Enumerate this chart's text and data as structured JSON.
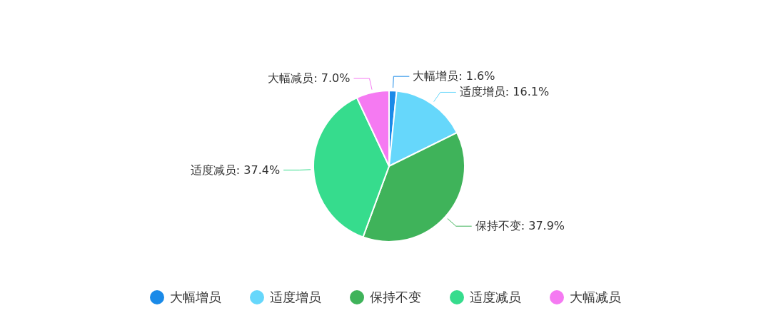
{
  "chart_data": {
    "type": "pie",
    "categories": [
      "大幅增员",
      "适度增员",
      "保持不变",
      "适度减员",
      "大幅减员"
    ],
    "values": [
      1.6,
      16.1,
      37.9,
      37.4,
      7.0
    ],
    "value_labels": [
      "大幅增员: 1.6%",
      "适度增员: 16.1%",
      "保持不变: 37.9%",
      "适度减员: 37.4%",
      "大幅减员: 7.0%"
    ],
    "colors": [
      "#1a8ae8",
      "#66d7fb",
      "#3fb35a",
      "#36dc8d",
      "#f57af2"
    ],
    "legend": "bottom"
  }
}
